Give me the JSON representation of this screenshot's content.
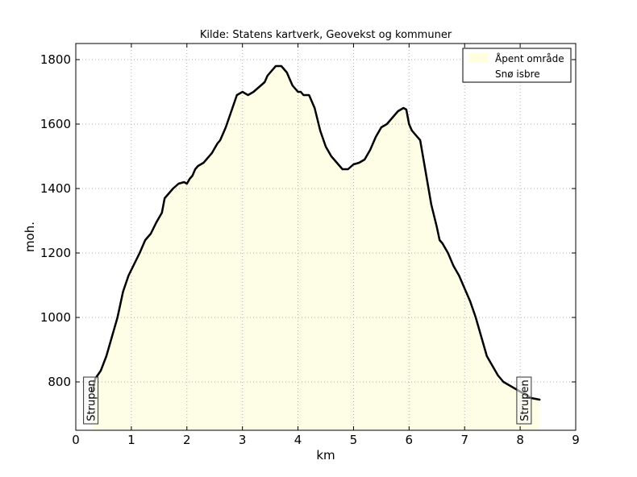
{
  "chart_data": {
    "type": "area",
    "title": "Kilde: Statens kartverk, Geovekst og kommuner",
    "xlabel": "km",
    "ylabel": "moh.",
    "xlim": [
      0,
      9
    ],
    "ylim": [
      650,
      1850
    ],
    "xticks": [
      0,
      1,
      2,
      3,
      4,
      5,
      6,
      7,
      8,
      9
    ],
    "yticks": [
      800,
      1000,
      1200,
      1400,
      1600,
      1800
    ],
    "grid": true,
    "legend_position": "top-right",
    "legend": [
      {
        "label": "Åpent område",
        "color": "#ffffe0"
      },
      {
        "label": "Snø isbre",
        "color": "#ffffff"
      }
    ],
    "colors": {
      "open_area": "#fefee6",
      "snow_glacier": "#fdfdfd",
      "line": "#000000"
    },
    "series": [
      {
        "x": [
          0.3,
          0.35,
          0.45,
          0.55,
          0.65,
          0.75,
          0.85,
          0.95,
          1.05,
          1.15,
          1.25,
          1.35,
          1.45,
          1.55,
          1.6,
          1.65,
          1.75,
          1.85,
          1.95,
          2.0,
          2.05,
          2.1,
          2.15,
          2.2,
          2.3,
          2.35,
          2.4,
          2.45,
          2.5,
          2.55,
          2.6,
          2.7,
          2.8,
          2.9,
          3.0,
          3.1,
          3.2,
          3.3,
          3.4,
          3.45,
          3.5,
          3.6,
          3.7,
          3.8,
          3.85,
          3.9,
          3.95,
          4.0,
          4.05,
          4.1,
          4.2,
          4.3,
          4.4,
          4.5,
          4.6,
          4.7,
          4.8,
          4.9,
          5.0,
          5.1,
          5.2,
          5.3,
          5.4,
          5.5,
          5.6,
          5.7,
          5.8,
          5.9,
          5.95,
          6.0,
          6.05,
          6.1,
          6.2,
          6.3,
          6.4,
          6.5,
          6.55,
          6.6,
          6.7,
          6.8,
          6.9,
          7.0,
          7.1,
          7.2,
          7.3,
          7.4,
          7.5,
          7.6,
          7.7,
          7.8,
          7.9,
          8.0,
          8.1,
          8.2,
          8.35
        ],
        "y": [
          770,
          810,
          835,
          880,
          940,
          1000,
          1080,
          1130,
          1165,
          1200,
          1240,
          1260,
          1295,
          1325,
          1370,
          1380,
          1400,
          1415,
          1420,
          1415,
          1430,
          1440,
          1460,
          1470,
          1480,
          1490,
          1500,
          1510,
          1525,
          1540,
          1550,
          1590,
          1640,
          1690,
          1700,
          1690,
          1700,
          1715,
          1730,
          1750,
          1760,
          1780,
          1780,
          1760,
          1740,
          1720,
          1710,
          1700,
          1700,
          1690,
          1690,
          1650,
          1580,
          1530,
          1500,
          1480,
          1460,
          1460,
          1475,
          1480,
          1490,
          1520,
          1560,
          1590,
          1600,
          1620,
          1640,
          1650,
          1645,
          1600,
          1580,
          1570,
          1550,
          1450,
          1350,
          1280,
          1240,
          1230,
          1200,
          1160,
          1130,
          1090,
          1050,
          1000,
          940,
          880,
          850,
          820,
          800,
          790,
          780,
          770,
          760,
          750,
          745
        ]
      }
    ],
    "annotations": [
      {
        "text": "Strupen",
        "x": 0.27
      },
      {
        "text": "Strupen",
        "x": 8.07
      }
    ]
  }
}
